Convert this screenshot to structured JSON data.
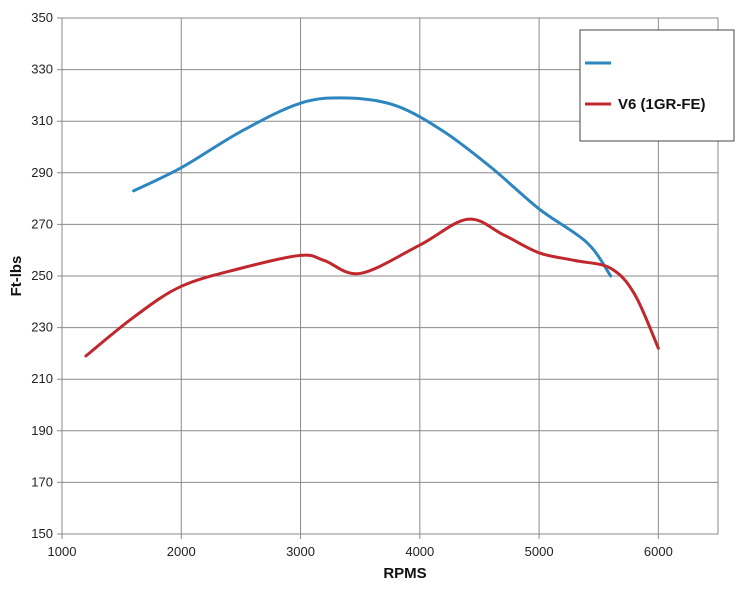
{
  "chart_data": {
    "type": "line",
    "title": "",
    "xlabel": "RPMS",
    "ylabel": "Ft-lbs",
    "xlim": [
      1000,
      6500
    ],
    "ylim": [
      150,
      350
    ],
    "x_ticks": [
      1000,
      2000,
      3000,
      4000,
      5000,
      6000
    ],
    "y_ticks": [
      150,
      170,
      190,
      210,
      230,
      250,
      270,
      290,
      310,
      330,
      350
    ],
    "grid": true,
    "legend_position": "top-right",
    "series": [
      {
        "name": "",
        "color": "#2e86c1",
        "points": [
          {
            "x": 1600,
            "y": 283
          },
          {
            "x": 2000,
            "y": 292
          },
          {
            "x": 2500,
            "y": 306
          },
          {
            "x": 3000,
            "y": 317
          },
          {
            "x": 3400,
            "y": 319
          },
          {
            "x": 3800,
            "y": 316
          },
          {
            "x": 4200,
            "y": 306
          },
          {
            "x": 4600,
            "y": 292
          },
          {
            "x": 5000,
            "y": 276
          },
          {
            "x": 5400,
            "y": 263
          },
          {
            "x": 5600,
            "y": 250
          }
        ]
      },
      {
        "name": "V6 (1GR-FE)",
        "color": "#c0282d",
        "points": [
          {
            "x": 1200,
            "y": 219
          },
          {
            "x": 1600,
            "y": 234
          },
          {
            "x": 2000,
            "y": 246
          },
          {
            "x": 2500,
            "y": 253
          },
          {
            "x": 3000,
            "y": 258
          },
          {
            "x": 3200,
            "y": 256
          },
          {
            "x": 3500,
            "y": 251
          },
          {
            "x": 4000,
            "y": 262
          },
          {
            "x": 4400,
            "y": 272
          },
          {
            "x": 4700,
            "y": 266
          },
          {
            "x": 5000,
            "y": 259
          },
          {
            "x": 5300,
            "y": 256
          },
          {
            "x": 5600,
            "y": 253
          },
          {
            "x": 5800,
            "y": 243
          },
          {
            "x": 6000,
            "y": 222
          }
        ]
      }
    ]
  }
}
